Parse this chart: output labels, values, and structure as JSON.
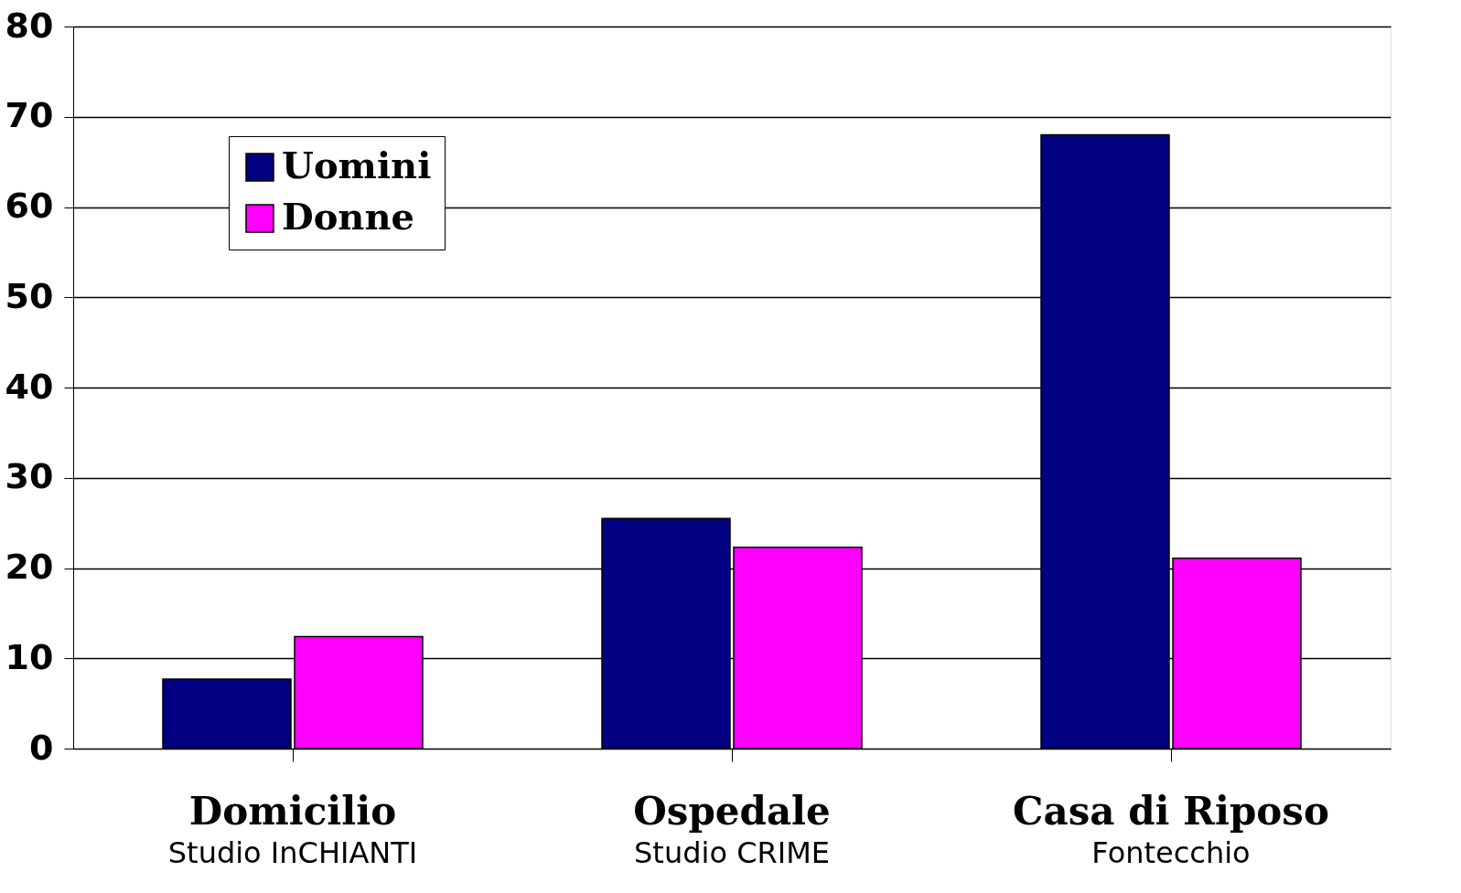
{
  "chart_data": {
    "type": "bar",
    "categories": [
      "Domicilio\nStudio InCHIANTI",
      "Ospedale\nStudio CRIME",
      "Casa di Riposo\nFontecchio"
    ],
    "series": [
      {
        "name": "Uomini",
        "color": "#000080",
        "values": [
          7.7,
          25.5,
          68
        ]
      },
      {
        "name": "Donne",
        "color": "#ff00ff",
        "values": [
          12.4,
          22.3,
          21.1
        ]
      }
    ],
    "ylim": [
      0,
      80
    ],
    "yticks": [
      0,
      10,
      20,
      30,
      40,
      50,
      60,
      70,
      80
    ],
    "grid": "y",
    "legend": "top left"
  }
}
